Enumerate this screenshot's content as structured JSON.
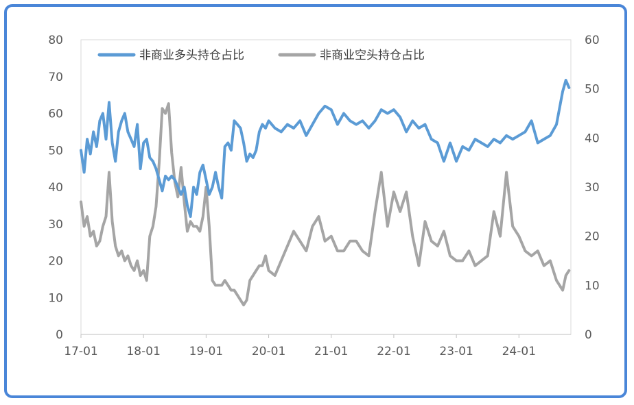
{
  "chart_data": {
    "type": "line",
    "title": "",
    "legend": {
      "placement": "top-left",
      "items": [
        "非商业多头持仓占比",
        "非商业空头持仓占比"
      ]
    },
    "y_left": {
      "min": 0,
      "max": 80,
      "ticks": [
        "80",
        "70",
        "60",
        "50",
        "40",
        "30",
        "20",
        "10",
        "0"
      ]
    },
    "y_right": {
      "min": 0,
      "max": 60,
      "ticks": [
        "60",
        "50",
        "40",
        "30",
        "20",
        "10",
        "0"
      ]
    },
    "x_ticks": [
      "17-01",
      "18-01",
      "19-01",
      "20-01",
      "21-01",
      "22-01",
      "23-01",
      "24-01"
    ],
    "x_range": [
      "2017-01",
      "2024-11"
    ],
    "grid": false,
    "series": [
      {
        "name": "非商业多头持仓占比",
        "axis": "left",
        "color": "#5b9bd5",
        "x": [
          2017.0,
          2017.05,
          2017.1,
          2017.15,
          2017.2,
          2017.25,
          2017.3,
          2017.35,
          2017.4,
          2017.45,
          2017.5,
          2017.55,
          2017.6,
          2017.65,
          2017.7,
          2017.75,
          2017.8,
          2017.85,
          2017.9,
          2017.95,
          2018.0,
          2018.05,
          2018.1,
          2018.15,
          2018.2,
          2018.25,
          2018.3,
          2018.35,
          2018.4,
          2018.45,
          2018.5,
          2018.55,
          2018.6,
          2018.65,
          2018.7,
          2018.75,
          2018.8,
          2018.85,
          2018.9,
          2018.95,
          2019.0,
          2019.05,
          2019.1,
          2019.15,
          2019.2,
          2019.25,
          2019.3,
          2019.35,
          2019.4,
          2019.45,
          2019.5,
          2019.55,
          2019.6,
          2019.65,
          2019.7,
          2019.75,
          2019.8,
          2019.85,
          2019.9,
          2019.95,
          2020.0,
          2020.1,
          2020.2,
          2020.3,
          2020.4,
          2020.5,
          2020.6,
          2020.7,
          2020.8,
          2020.9,
          2021.0,
          2021.1,
          2021.2,
          2021.3,
          2021.4,
          2021.5,
          2021.6,
          2021.7,
          2021.8,
          2021.9,
          2022.0,
          2022.1,
          2022.2,
          2022.3,
          2022.4,
          2022.5,
          2022.6,
          2022.7,
          2022.8,
          2022.9,
          2023.0,
          2023.1,
          2023.2,
          2023.3,
          2023.4,
          2023.5,
          2023.6,
          2023.7,
          2023.8,
          2023.9,
          2024.0,
          2024.1,
          2024.2,
          2024.3,
          2024.4,
          2024.5,
          2024.6,
          2024.7,
          2024.75,
          2024.8
        ],
        "values": [
          50,
          44,
          53,
          49,
          55,
          51,
          58,
          60,
          53,
          63,
          52,
          47,
          55,
          58,
          60,
          55,
          53,
          51,
          57,
          45,
          52,
          53,
          48,
          47,
          45,
          42,
          39,
          43,
          42,
          43,
          42,
          40,
          38,
          40,
          35,
          32,
          40,
          38,
          44,
          46,
          42,
          38,
          40,
          44,
          40,
          37,
          51,
          52,
          50,
          58,
          57,
          56,
          52,
          47,
          49,
          48,
          50,
          55,
          57,
          56,
          58,
          56,
          55,
          57,
          56,
          58,
          54,
          57,
          60,
          62,
          61,
          57,
          60,
          58,
          57,
          58,
          56,
          58,
          61,
          60,
          61,
          59,
          55,
          58,
          56,
          57,
          53,
          52,
          47,
          52,
          47,
          51,
          50,
          53,
          52,
          51,
          53,
          52,
          54,
          53,
          54,
          55,
          58,
          52,
          53,
          54,
          57,
          66,
          69,
          67
        ],
        "values_note": ""
      },
      {
        "name": "非商业空头持仓占比",
        "axis": "right",
        "color": "#a5a5a5",
        "x": [
          2017.0,
          2017.05,
          2017.1,
          2017.15,
          2017.2,
          2017.25,
          2017.3,
          2017.35,
          2017.4,
          2017.45,
          2017.5,
          2017.55,
          2017.6,
          2017.65,
          2017.7,
          2017.75,
          2017.8,
          2017.85,
          2017.9,
          2017.95,
          2018.0,
          2018.05,
          2018.1,
          2018.15,
          2018.2,
          2018.25,
          2018.3,
          2018.35,
          2018.4,
          2018.45,
          2018.5,
          2018.55,
          2018.6,
          2018.65,
          2018.7,
          2018.75,
          2018.8,
          2018.85,
          2018.9,
          2018.95,
          2019.0,
          2019.05,
          2019.1,
          2019.15,
          2019.2,
          2019.25,
          2019.3,
          2019.35,
          2019.4,
          2019.45,
          2019.5,
          2019.55,
          2019.6,
          2019.65,
          2019.7,
          2019.75,
          2019.8,
          2019.85,
          2019.9,
          2019.95,
          2020.0,
          2020.1,
          2020.2,
          2020.3,
          2020.4,
          2020.5,
          2020.6,
          2020.7,
          2020.8,
          2020.9,
          2021.0,
          2021.1,
          2021.2,
          2021.3,
          2021.4,
          2021.5,
          2021.6,
          2021.7,
          2021.8,
          2021.9,
          2022.0,
          2022.1,
          2022.2,
          2022.3,
          2022.4,
          2022.5,
          2022.6,
          2022.7,
          2022.8,
          2022.9,
          2023.0,
          2023.1,
          2023.2,
          2023.3,
          2023.4,
          2023.5,
          2023.6,
          2023.7,
          2023.8,
          2023.9,
          2024.0,
          2024.1,
          2024.2,
          2024.3,
          2024.4,
          2024.5,
          2024.6,
          2024.7,
          2024.75,
          2024.8
        ],
        "values": [
          27,
          22,
          24,
          20,
          21,
          18,
          19,
          22,
          24,
          33,
          23,
          18,
          16,
          17,
          15,
          16,
          14,
          13,
          15,
          12,
          13,
          11,
          20,
          22,
          26,
          35,
          46,
          45,
          47,
          37,
          31,
          28,
          34,
          27,
          21,
          23,
          22,
          22,
          21,
          24,
          30,
          22,
          11,
          10,
          10,
          10,
          11,
          10,
          9,
          9,
          8,
          7,
          6,
          7,
          11,
          12,
          13,
          14,
          14,
          16,
          13,
          12,
          15,
          18,
          21,
          19,
          17,
          22,
          24,
          19,
          20,
          17,
          17,
          19,
          19,
          17,
          16,
          25,
          33,
          22,
          29,
          25,
          29,
          20,
          14,
          23,
          19,
          18,
          21,
          16,
          15,
          15,
          17,
          14,
          15,
          16,
          25,
          20,
          33,
          22,
          20,
          17,
          16,
          17,
          14,
          15,
          11,
          9,
          12,
          13
        ],
        "values_note": ""
      }
    ]
  }
}
